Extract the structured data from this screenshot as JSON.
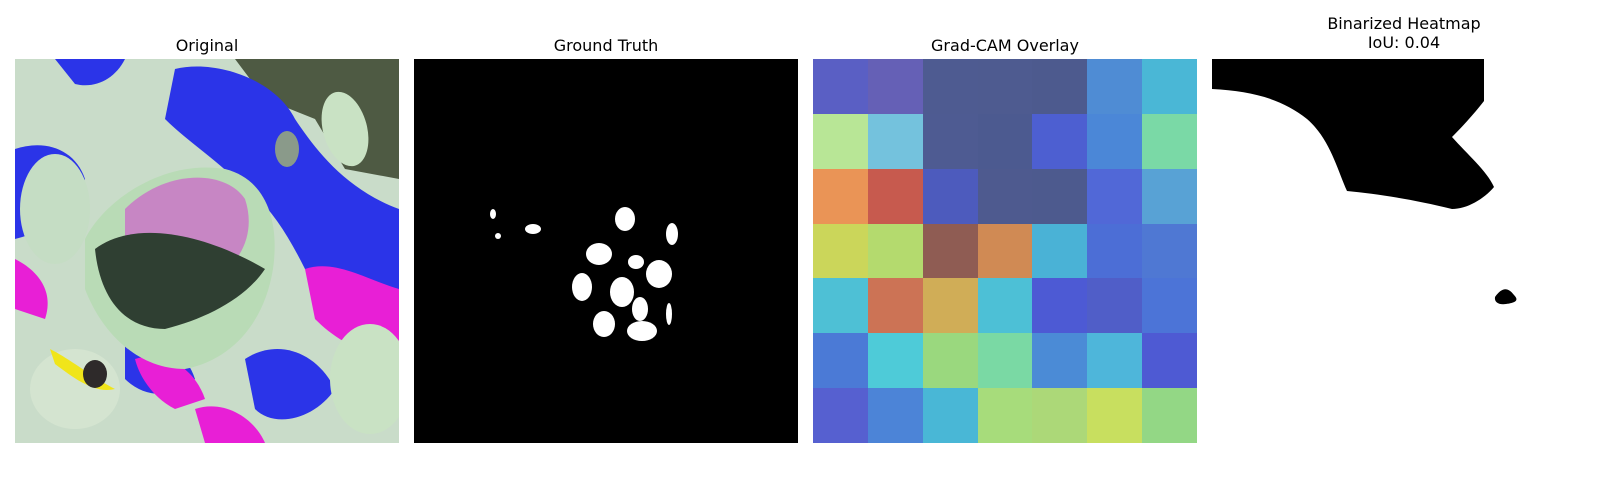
{
  "panels": [
    {
      "title": "Original"
    },
    {
      "title": "Ground Truth"
    },
    {
      "title": "Grad-CAM Overlay"
    },
    {
      "title": "Binarized Heatmap\nIoU: 0.04"
    }
  ],
  "gradcam_grid": [
    [
      "#5a5fc4",
      "#6560b6",
      "#4e5b91",
      "#4e5b90",
      "#4d5a8e",
      "#4f8cd4",
      "#4ab7d6"
    ],
    [
      "#b8e696",
      "#74c2dd",
      "#4e5b92",
      "#4c5a90",
      "#4d5fd1",
      "#4b87d7",
      "#7ad9a6"
    ],
    [
      "#ea9456",
      "#c75a4e",
      "#4d5bbd",
      "#4e5a8f",
      "#4d5a8e",
      "#5168d7",
      "#58a2d5"
    ],
    [
      "#cbd65a",
      "#b4da6e",
      "#8f5c53",
      "#d08a54",
      "#4ab2d6",
      "#4c6ed6",
      "#4f78d3"
    ],
    [
      "#4ec0d5",
      "#cc7355",
      "#d0ad57",
      "#4dc0d6",
      "#4d5ad4",
      "#505ec8",
      "#4c74d7"
    ],
    [
      "#4b7ad6",
      "#4ecbd8",
      "#9ad87e",
      "#7ad9a4",
      "#4b8bd6",
      "#4eb6da",
      "#4e5ad3"
    ],
    [
      "#5660d0",
      "#4c84d7",
      "#49b7d6",
      "#a7dc7b",
      "#acd878",
      "#c8df5f",
      "#93d785"
    ]
  ]
}
